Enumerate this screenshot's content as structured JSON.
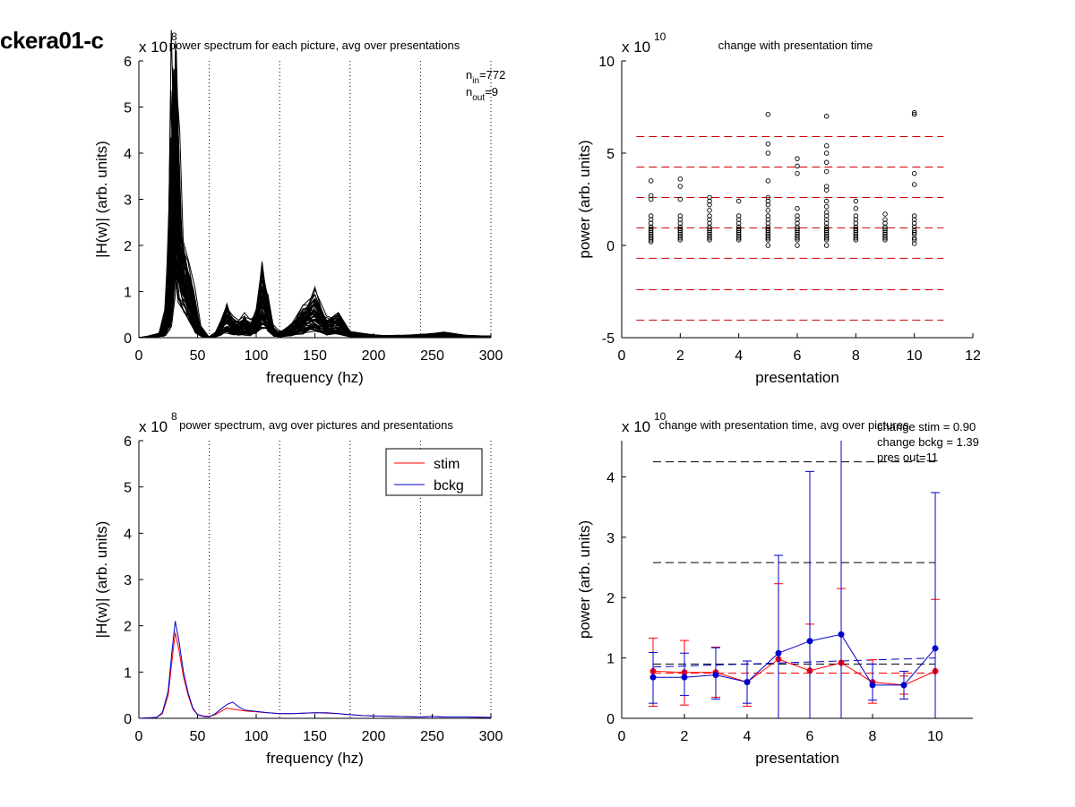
{
  "figure_title": "ckera01-c",
  "chart_data": [
    {
      "id": "spectrum_each",
      "type": "line",
      "title": "power spectrum for each picture, avg over presentations",
      "exponent_label": "x 10",
      "exponent": "8",
      "xlabel": "frequency (hz)",
      "ylabel": "|H(w)| (arb. units)",
      "xlim": [
        0,
        300
      ],
      "ylim": [
        0,
        6
      ],
      "xticks": [
        "0",
        "50",
        "100",
        "150",
        "200",
        "250",
        "300"
      ],
      "yticks": [
        "0",
        "1",
        "2",
        "3",
        "4",
        "5",
        "6"
      ],
      "vlines": [
        60,
        120,
        180,
        240,
        300
      ],
      "annotation": [
        "n_in=772",
        "n_out=9"
      ],
      "annot_in": {
        "main": "n",
        "sub": "in",
        "rest": "=772"
      },
      "annot_out": {
        "main": "n",
        "sub": "out",
        "rest": "=9"
      },
      "representative_series": [
        {
          "x": [
            0,
            10,
            20,
            25,
            28,
            30,
            32,
            35,
            40,
            45,
            50,
            55,
            60,
            65,
            70,
            75,
            80,
            85,
            90,
            95,
            100,
            105,
            110,
            115,
            120,
            130,
            140,
            150,
            160,
            170,
            180,
            200,
            220,
            240,
            260,
            280,
            300
          ],
          "y": [
            0,
            0.03,
            0.1,
            0.6,
            2.5,
            5.8,
            4.2,
            2.3,
            1.6,
            1.0,
            0.3,
            0.08,
            0.02,
            0.1,
            0.35,
            0.65,
            0.4,
            0.3,
            0.4,
            0.3,
            0.5,
            1.25,
            0.8,
            0.2,
            0.1,
            0.25,
            0.55,
            0.85,
            0.35,
            0.5,
            0.1,
            0.05,
            0.04,
            0.06,
            0.1,
            0.04,
            0.03
          ]
        }
      ]
    },
    {
      "id": "change_pres",
      "type": "scatter",
      "title": "change with presentation time",
      "exponent_label": "x 10",
      "exponent": "10",
      "xlabel": "presentation",
      "ylabel": "power (arb. units)",
      "xlim": [
        0,
        12
      ],
      "ylim": [
        -5,
        10
      ],
      "xticks": [
        "0",
        "2",
        "4",
        "6",
        "8",
        "10",
        "12"
      ],
      "yticks": [
        "-5",
        "0",
        "5",
        "10"
      ],
      "hlines": [
        5.9,
        4.25,
        2.6,
        0.95,
        -0.7,
        -2.4,
        -4.05
      ],
      "points": [
        {
          "x": 1,
          "y": [
            3.5,
            2.7,
            2.5,
            1.6,
            1.4,
            1.2,
            1.0,
            0.9,
            0.8,
            0.7,
            0.6,
            0.5,
            0.4,
            0.3,
            0.2
          ]
        },
        {
          "x": 2,
          "y": [
            3.6,
            3.2,
            2.5,
            1.6,
            1.4,
            1.2,
            1.0,
            0.9,
            0.8,
            0.7,
            0.6,
            0.5,
            0.4,
            0.3
          ]
        },
        {
          "x": 3,
          "y": [
            2.6,
            2.4,
            2.2,
            1.9,
            1.6,
            1.4,
            1.2,
            1.0,
            0.9,
            0.8,
            0.7,
            0.6,
            0.5,
            0.4,
            0.3
          ]
        },
        {
          "x": 4,
          "y": [
            2.4,
            1.6,
            1.4,
            1.2,
            1.0,
            0.9,
            0.8,
            0.7,
            0.6,
            0.5,
            0.4,
            0.3
          ]
        },
        {
          "x": 5,
          "y": [
            7.1,
            5.5,
            5.0,
            3.5,
            2.6,
            2.4,
            2.2,
            1.9,
            1.6,
            1.4,
            1.2,
            1.0,
            0.9,
            0.8,
            0.7,
            0.6,
            0.5,
            0.4,
            0.3,
            0.0
          ]
        },
        {
          "x": 6,
          "y": [
            4.7,
            4.3,
            3.9,
            2.0,
            1.6,
            1.4,
            1.2,
            1.0,
            0.9,
            0.8,
            0.7,
            0.6,
            0.5,
            0.4,
            0.3,
            0.0
          ]
        },
        {
          "x": 7,
          "y": [
            7.0,
            5.4,
            5.0,
            4.5,
            4.0,
            3.2,
            3.0,
            2.4,
            2.1,
            1.8,
            1.6,
            1.4,
            1.2,
            1.0,
            0.9,
            0.8,
            0.7,
            0.6,
            0.5,
            0.4,
            0.3,
            0.0
          ]
        },
        {
          "x": 8,
          "y": [
            2.4,
            2.0,
            1.6,
            1.4,
            1.2,
            1.0,
            0.9,
            0.8,
            0.7,
            0.6,
            0.5,
            0.4,
            0.3
          ]
        },
        {
          "x": 9,
          "y": [
            1.7,
            1.4,
            1.2,
            1.0,
            0.9,
            0.8,
            0.7,
            0.6,
            0.5,
            0.4,
            0.3
          ]
        },
        {
          "x": 10,
          "y": [
            7.2,
            7.1,
            3.9,
            3.3,
            1.6,
            1.4,
            1.2,
            1.0,
            0.8,
            0.7,
            0.6,
            0.4,
            0.3,
            0.1
          ]
        }
      ]
    },
    {
      "id": "spectrum_avg",
      "type": "line",
      "title": "power spectrum, avg over pictures and presentations",
      "exponent_label": "x 10",
      "exponent": "8",
      "xlabel": "frequency (hz)",
      "ylabel": "|H(w)| (arb. units)",
      "xlim": [
        0,
        300
      ],
      "ylim": [
        0,
        6
      ],
      "xticks": [
        "0",
        "50",
        "100",
        "150",
        "200",
        "250",
        "300"
      ],
      "yticks": [
        "0",
        "1",
        "2",
        "3",
        "4",
        "5",
        "6"
      ],
      "vlines": [
        60,
        120,
        180,
        240,
        300
      ],
      "legend": {
        "position": "top-right"
      },
      "series": [
        {
          "name": "stim",
          "color": "#ff0000",
          "x": [
            0,
            15,
            20,
            25,
            28,
            31,
            34,
            38,
            42,
            46,
            50,
            55,
            60,
            65,
            70,
            75,
            80,
            85,
            90,
            100,
            110,
            120,
            130,
            140,
            150,
            160,
            170,
            180,
            190,
            200,
            220,
            240,
            250,
            260,
            280,
            300
          ],
          "y": [
            0,
            0.02,
            0.1,
            0.5,
            1.2,
            1.85,
            1.5,
            0.9,
            0.5,
            0.2,
            0.08,
            0.05,
            0.04,
            0.08,
            0.15,
            0.22,
            0.2,
            0.18,
            0.16,
            0.14,
            0.12,
            0.1,
            0.1,
            0.11,
            0.12,
            0.11,
            0.1,
            0.08,
            0.06,
            0.05,
            0.04,
            0.03,
            0.04,
            0.03,
            0.03,
            0.02
          ]
        },
        {
          "name": "bckg",
          "color": "#0000cc",
          "x": [
            0,
            15,
            20,
            25,
            28,
            31,
            34,
            38,
            42,
            46,
            50,
            55,
            60,
            65,
            70,
            75,
            80,
            85,
            90,
            100,
            110,
            120,
            130,
            140,
            150,
            160,
            170,
            180,
            190,
            200,
            220,
            240,
            250,
            260,
            280,
            300
          ],
          "y": [
            0,
            0.02,
            0.12,
            0.6,
            1.4,
            2.1,
            1.7,
            1.0,
            0.55,
            0.22,
            0.08,
            0.04,
            0.03,
            0.1,
            0.2,
            0.3,
            0.35,
            0.25,
            0.18,
            0.15,
            0.12,
            0.1,
            0.1,
            0.11,
            0.12,
            0.12,
            0.1,
            0.08,
            0.06,
            0.05,
            0.04,
            0.03,
            0.04,
            0.03,
            0.03,
            0.02
          ]
        }
      ]
    },
    {
      "id": "change_avg",
      "type": "line",
      "title": "change with presentation time, avg over pictures",
      "exponent_label": "x 10",
      "exponent": "10",
      "xlabel": "presentation",
      "ylabel": "power (arb. units)",
      "xlim": [
        0,
        11.2
      ],
      "ylim": [
        0,
        4.6
      ],
      "xticks": [
        "0",
        "2",
        "4",
        "6",
        "8",
        "10"
      ],
      "yticks": [
        "0",
        "1",
        "2",
        "3",
        "4"
      ],
      "annotations": [
        "change stim = 0.90",
        "change bckg = 1.39",
        "pres out=11"
      ],
      "hlines": [
        {
          "y": 4.25,
          "color": "#000000",
          "x0": 1,
          "x1": 10
        },
        {
          "y": 2.58,
          "color": "#000000",
          "x0": 1,
          "x1": 10
        },
        {
          "y": 0.9,
          "color": "#000000",
          "x0": 1,
          "x1": 10
        },
        {
          "y": 0.75,
          "color": "#ff0000",
          "x0": 1,
          "x1": 10
        }
      ],
      "trend": {
        "color": "#0000cc",
        "x0": 1,
        "y0": 0.85,
        "x1": 10,
        "y1": 1.0
      },
      "series": [
        {
          "name": "stim",
          "color": "#ff0000",
          "x": [
            1,
            2,
            3,
            4,
            5,
            6,
            7,
            8,
            9,
            10
          ],
          "y": [
            0.78,
            0.76,
            0.76,
            0.6,
            0.98,
            0.79,
            0.92,
            0.6,
            0.55,
            0.78
          ],
          "err_low": [
            0.2,
            0.22,
            0.35,
            0.2,
            0.0,
            0.0,
            0.0,
            0.25,
            0.4,
            0.0
          ],
          "err_high": [
            1.33,
            1.29,
            1.18,
            0.95,
            2.23,
            1.56,
            2.15,
            0.97,
            0.7,
            1.97
          ]
        },
        {
          "name": "bckg",
          "color": "#0000cc",
          "x": [
            1,
            2,
            3,
            4,
            5,
            6,
            7,
            8,
            9,
            10
          ],
          "y": [
            0.68,
            0.68,
            0.72,
            0.6,
            1.08,
            1.28,
            1.39,
            0.55,
            0.55,
            1.16
          ],
          "err_low": [
            0.25,
            0.38,
            0.32,
            0.25,
            0.0,
            0.0,
            0.0,
            0.3,
            0.32,
            0.0
          ],
          "err_high": [
            1.09,
            1.08,
            1.17,
            0.95,
            2.7,
            4.09,
            4.6,
            0.9,
            0.78,
            3.74
          ]
        }
      ]
    }
  ]
}
